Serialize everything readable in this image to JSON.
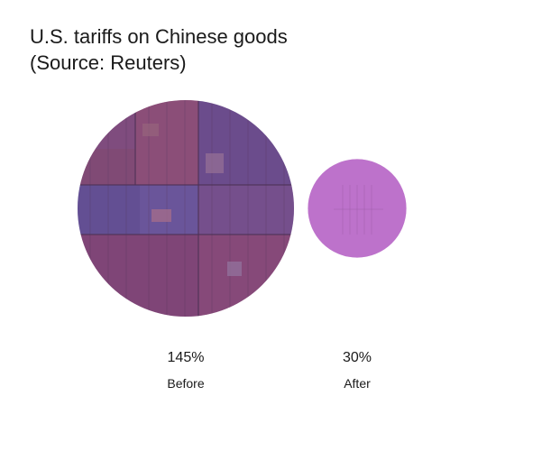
{
  "title_line1": "U.S. tariffs on Chinese goods",
  "title_line2": "(Source: Reuters)",
  "chart_data": {
    "type": "bubble",
    "title": "U.S. tariffs on Chinese goods",
    "subtitle": "(Source: Reuters)",
    "unit": "%",
    "categories": [
      "Before",
      "After"
    ],
    "values": [
      145,
      30
    ],
    "value_labels": [
      "145%",
      "30%"
    ],
    "fill_color": "#8a4f8e",
    "colors": {
      "before_overlay": "#8a4f8e",
      "after_overlay": "#c77fd4"
    },
    "grid": false,
    "legend": "none"
  }
}
